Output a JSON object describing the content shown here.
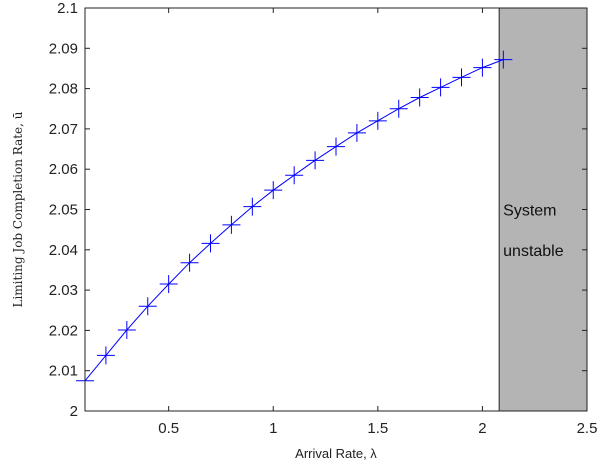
{
  "chart_data": {
    "type": "line",
    "xlabel": "Arrival Rate, λ",
    "ylabel": "Limiting Job Completion Rate, ū",
    "xlim": [
      0.1,
      2.5
    ],
    "ylim": [
      2.0,
      2.1
    ],
    "x_ticks": [
      0.5,
      1,
      1.5,
      2,
      2.5
    ],
    "x_tick_labels": [
      "0.5",
      "1",
      "1.5",
      "2",
      "2.5"
    ],
    "y_ticks": [
      2.0,
      2.01,
      2.02,
      2.03,
      2.04,
      2.05,
      2.06,
      2.07,
      2.08,
      2.09,
      2.1
    ],
    "y_tick_labels": [
      "2",
      "2.01",
      "2.02",
      "2.03",
      "2.04",
      "2.05",
      "2.06",
      "2.07",
      "2.08",
      "2.09",
      "2.1"
    ],
    "grid": false,
    "series": [
      {
        "color": "#0000ff",
        "marker": "plus",
        "x": [
          0.1,
          0.2,
          0.3,
          0.4,
          0.5,
          0.6,
          0.7,
          0.8,
          0.9,
          1.0,
          1.1,
          1.2,
          1.3,
          1.4,
          1.5,
          1.6,
          1.7,
          1.8,
          1.9,
          2.0,
          2.1
        ],
        "y": [
          2.0075,
          2.0138,
          2.0201,
          2.026,
          2.0315,
          2.0368,
          2.0416,
          2.0462,
          2.0507,
          2.0548,
          2.0585,
          2.0622,
          2.0656,
          2.069,
          2.072,
          2.075,
          2.0778,
          2.0803,
          2.0828,
          2.0852,
          2.0872
        ]
      }
    ],
    "region": {
      "x_start": 2.08,
      "x_end": 2.5,
      "color": "#b4b4b4",
      "label_lines": [
        "System",
        "unstable"
      ]
    }
  }
}
